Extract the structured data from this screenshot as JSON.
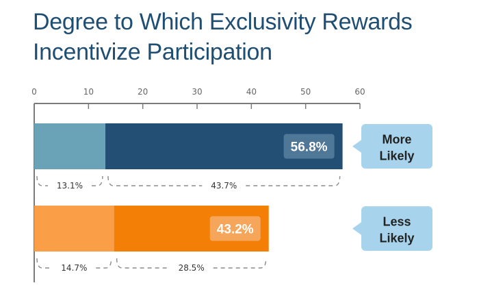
{
  "title": {
    "line1": "Degree to Which Exclusivity Rewards",
    "line2": "Incentivize Participation"
  },
  "chart_data": {
    "type": "bar",
    "stacked": true,
    "orientation": "horizontal",
    "xlim": [
      0,
      60
    ],
    "x_ticks": [
      "0",
      "10",
      "20",
      "30",
      "40",
      "50",
      "60"
    ],
    "grid": false,
    "categories": [
      "More Likely",
      "Less Likely"
    ],
    "bars": [
      {
        "label_lines": [
          "More",
          "Likely"
        ],
        "total": 56.8,
        "total_label": "56.8%",
        "segments": [
          {
            "value": 13.1,
            "label": "13.1%",
            "color": "#6aa3b8"
          },
          {
            "value": 43.7,
            "label": "43.7%",
            "color": "#234f75"
          }
        ],
        "total_badge_color": "#4f7797",
        "callout_color": "#a7d4ec"
      },
      {
        "label_lines": [
          "Less",
          "Likely"
        ],
        "total": 43.2,
        "total_label": "43.2%",
        "segments": [
          {
            "value": 14.7,
            "label": "14.7%",
            "color": "#fa9e47"
          },
          {
            "value": 28.5,
            "label": "28.5%",
            "color": "#f47f06"
          }
        ],
        "total_badge_color": "#f6a65a",
        "callout_color": "#a7d4ec"
      }
    ]
  }
}
